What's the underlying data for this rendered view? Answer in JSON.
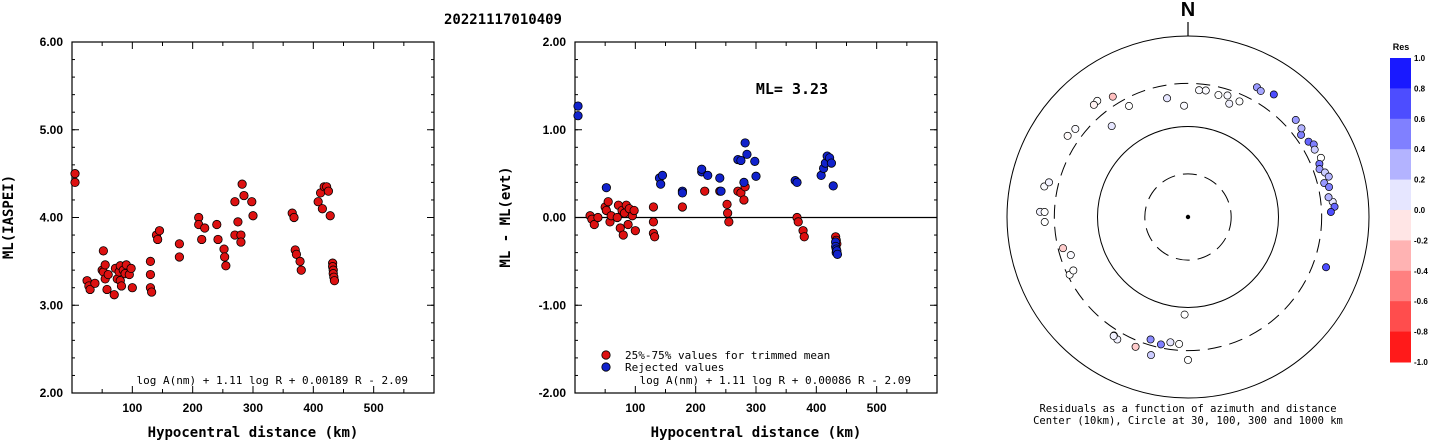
{
  "title": "20221117010409",
  "chart_data": [
    {
      "type": "scatter",
      "panel": "left",
      "xlabel": "Hypocentral distance (km)",
      "ylabel": "ML(IASPEI)",
      "xlim": [
        0,
        600
      ],
      "ylim": [
        2.0,
        6.0
      ],
      "xticks": [
        "100",
        "200",
        "300",
        "400",
        "500"
      ],
      "yticks": [
        "2.00",
        "3.00",
        "4.00",
        "5.00",
        "6.00"
      ],
      "formula": "log A(nm) + 1.11 log R + 0.00189 R - 2.09",
      "series": [
        {
          "color": "#dd1111",
          "points": [
            [
              5,
              4.5
            ],
            [
              5,
              4.4
            ],
            [
              25,
              3.28
            ],
            [
              28,
              3.22
            ],
            [
              30,
              3.18
            ],
            [
              38,
              3.25
            ],
            [
              50,
              3.4
            ],
            [
              52,
              3.62
            ],
            [
              52,
              3.38
            ],
            [
              55,
              3.46
            ],
            [
              55,
              3.3
            ],
            [
              58,
              3.18
            ],
            [
              60,
              3.35
            ],
            [
              70,
              3.12
            ],
            [
              72,
              3.42
            ],
            [
              75,
              3.3
            ],
            [
              78,
              3.38
            ],
            [
              80,
              3.28
            ],
            [
              80,
              3.45
            ],
            [
              82,
              3.22
            ],
            [
              85,
              3.4
            ],
            [
              88,
              3.36
            ],
            [
              90,
              3.46
            ],
            [
              95,
              3.35
            ],
            [
              98,
              3.42
            ],
            [
              100,
              3.2
            ],
            [
              130,
              3.5
            ],
            [
              130,
              3.35
            ],
            [
              130,
              3.2
            ],
            [
              132,
              3.15
            ],
            [
              140,
              3.8
            ],
            [
              142,
              3.75
            ],
            [
              145,
              3.85
            ],
            [
              178,
              3.7
            ],
            [
              178,
              3.55
            ],
            [
              210,
              4.0
            ],
            [
              210,
              3.92
            ],
            [
              215,
              3.75
            ],
            [
              220,
              3.88
            ],
            [
              240,
              3.92
            ],
            [
              242,
              3.75
            ],
            [
              252,
              3.64
            ],
            [
              253,
              3.55
            ],
            [
              255,
              3.45
            ],
            [
              270,
              3.8
            ],
            [
              270,
              4.18
            ],
            [
              275,
              3.95
            ],
            [
              280,
              3.8
            ],
            [
              280,
              3.72
            ],
            [
              282,
              4.38
            ],
            [
              285,
              4.25
            ],
            [
              298,
              4.18
            ],
            [
              300,
              4.02
            ],
            [
              365,
              4.05
            ],
            [
              368,
              4.0
            ],
            [
              370,
              3.63
            ],
            [
              372,
              3.58
            ],
            [
              378,
              3.5
            ],
            [
              380,
              3.4
            ],
            [
              408,
              4.18
            ],
            [
              412,
              4.28
            ],
            [
              415,
              4.1
            ],
            [
              418,
              4.35
            ],
            [
              422,
              4.35
            ],
            [
              425,
              4.3
            ],
            [
              428,
              4.02
            ],
            [
              432,
              3.48
            ],
            [
              432,
              3.44
            ],
            [
              433,
              3.4
            ],
            [
              433,
              3.36
            ],
            [
              434,
              3.32
            ],
            [
              435,
              3.28
            ]
          ]
        }
      ]
    },
    {
      "type": "scatter",
      "panel": "middle",
      "xlabel": "Hypocentral distance (km)",
      "ylabel": "ML - ML(evt)",
      "xlim": [
        0,
        600
      ],
      "ylim": [
        -2.0,
        2.0
      ],
      "xticks": [
        "100",
        "200",
        "300",
        "400",
        "500"
      ],
      "yticks": [
        "-2.00",
        "-1.00",
        "0.00",
        "1.00",
        "2.00"
      ],
      "annotation": "ML= 3.23",
      "formula": "log A(nm) + 1.11 log R + 0.00086 R - 2.09",
      "legend": [
        "25%-75% values for trimmed mean",
        "Rejected values"
      ],
      "series": [
        {
          "name": "25%-75% values for trimmed mean",
          "color": "#dd1111",
          "points": [
            [
              25,
              0.02
            ],
            [
              28,
              -0.02
            ],
            [
              32,
              -0.08
            ],
            [
              38,
              0.0
            ],
            [
              50,
              0.12
            ],
            [
              52,
              0.08
            ],
            [
              55,
              0.18
            ],
            [
              58,
              -0.05
            ],
            [
              60,
              0.02
            ],
            [
              70,
              0.0
            ],
            [
              72,
              0.14
            ],
            [
              75,
              -0.12
            ],
            [
              78,
              0.08
            ],
            [
              80,
              -0.2
            ],
            [
              82,
              0.05
            ],
            [
              85,
              0.14
            ],
            [
              88,
              -0.08
            ],
            [
              90,
              0.1
            ],
            [
              95,
              0.02
            ],
            [
              98,
              0.08
            ],
            [
              100,
              -0.15
            ],
            [
              130,
              0.12
            ],
            [
              130,
              -0.05
            ],
            [
              130,
              -0.18
            ],
            [
              132,
              -0.22
            ],
            [
              178,
              0.12
            ],
            [
              215,
              0.3
            ],
            [
              240,
              0.3
            ],
            [
              252,
              0.15
            ],
            [
              253,
              0.05
            ],
            [
              255,
              -0.05
            ],
            [
              270,
              0.3
            ],
            [
              275,
              0.28
            ],
            [
              280,
              0.2
            ],
            [
              282,
              0.35
            ],
            [
              368,
              0.0
            ],
            [
              370,
              -0.05
            ],
            [
              378,
              -0.15
            ],
            [
              380,
              -0.22
            ],
            [
              432,
              -0.22
            ],
            [
              433,
              -0.26
            ],
            [
              434,
              -0.3
            ]
          ]
        },
        {
          "name": "Rejected values",
          "color": "#1122cc",
          "points": [
            [
              5,
              1.27
            ],
            [
              5,
              1.16
            ],
            [
              52,
              0.34
            ],
            [
              140,
              0.45
            ],
            [
              142,
              0.38
            ],
            [
              145,
              0.48
            ],
            [
              178,
              0.3
            ],
            [
              178,
              0.28
            ],
            [
              210,
              0.52
            ],
            [
              210,
              0.55
            ],
            [
              220,
              0.48
            ],
            [
              240,
              0.45
            ],
            [
              242,
              0.3
            ],
            [
              270,
              0.66
            ],
            [
              275,
              0.65
            ],
            [
              280,
              0.4
            ],
            [
              282,
              0.85
            ],
            [
              285,
              0.72
            ],
            [
              298,
              0.64
            ],
            [
              300,
              0.47
            ],
            [
              365,
              0.42
            ],
            [
              368,
              0.4
            ],
            [
              408,
              0.48
            ],
            [
              412,
              0.56
            ],
            [
              415,
              0.62
            ],
            [
              418,
              0.7
            ],
            [
              422,
              0.68
            ],
            [
              425,
              0.62
            ],
            [
              428,
              0.36
            ],
            [
              432,
              -0.28
            ],
            [
              432,
              -0.33
            ],
            [
              433,
              -0.36
            ],
            [
              433,
              -0.4
            ],
            [
              434,
              -0.38
            ],
            [
              435,
              -0.42
            ]
          ]
        }
      ]
    },
    {
      "type": "scatter",
      "panel": "polar",
      "north_label": "N",
      "caption_lines": [
        "Residuals as a function of azimuth and distance",
        "Center (10km), Circle at 30, 100, 300 and 1000 km"
      ],
      "ring_radii_km": [
        30,
        100,
        300,
        1000
      ],
      "ring_styles": [
        "dashed",
        "solid",
        "dashed",
        "solid"
      ],
      "colorbar": {
        "title": "Res",
        "ticks": [
          "1.0",
          "0.8",
          "0.6",
          "0.4",
          "0.2",
          "0.0",
          "-0.2",
          "-0.4",
          "-0.6",
          "-0.8",
          "-1.0"
        ],
        "range": [
          -1.0,
          1.0
        ]
      },
      "points_azimuth_deg_distance_km_residual": [
        [
          -38,
          425,
          0.0
        ],
        [
          -40,
          415,
          -0.05
        ],
        [
          -32,
          370,
          -0.25
        ],
        [
          -52,
          380,
          0.02
        ],
        [
          -56,
          402,
          -0.02
        ],
        [
          -40,
          205,
          0.1
        ],
        [
          -28,
          245,
          0.0
        ],
        [
          -78,
          420,
          0.02
        ],
        [
          -76,
          383,
          0.05
        ],
        [
          -88,
          432,
          0.05
        ],
        [
          -88,
          385,
          0.0
        ],
        [
          -92,
          384,
          0.0
        ],
        [
          -116,
          285,
          0.0
        ],
        [
          -148,
          350,
          0.0
        ],
        [
          -180,
          380,
          0.0
        ],
        [
          -176,
          255,
          0.0
        ],
        [
          -172,
          250,
          0.1
        ],
        [
          -168,
          275,
          0.5
        ],
        [
          -163,
          260,
          0.45
        ],
        [
          -165,
          380,
          0.2
        ],
        [
          -158,
          352,
          -0.2
        ],
        [
          -150,
          365,
          0.05
        ],
        [
          -148,
          355,
          0.05
        ],
        [
          -115,
          250,
          0.0
        ],
        [
          -108,
          230,
          0.02
        ],
        [
          -104,
          265,
          -0.2
        ],
        [
          -178,
          120,
          0.0
        ],
        [
          -2,
          170,
          0.02
        ],
        [
          -10,
          215,
          0.1
        ],
        [
          5,
          255,
          0.02
        ],
        [
          8,
          258,
          0.02
        ],
        [
          14,
          245,
          0.0
        ],
        [
          20,
          215,
          0.05
        ],
        [
          18,
          258,
          0.02
        ],
        [
          24,
          250,
          0.0
        ],
        [
          28,
          420,
          0.4
        ],
        [
          30,
          405,
          0.35
        ],
        [
          35,
          450,
          0.7
        ],
        [
          54,
          350,
          0.5
        ],
        [
          48,
          400,
          0.4
        ],
        [
          52,
          390,
          0.3
        ],
        [
          58,
          372,
          0.6
        ],
        [
          60,
          402,
          0.5
        ],
        [
          62,
          385,
          0.2
        ],
        [
          66,
          405,
          0.0
        ],
        [
          68,
          368,
          0.55
        ],
        [
          70,
          352,
          0.4
        ],
        [
          72,
          390,
          0.2
        ],
        [
          74,
          415,
          0.3
        ],
        [
          76,
          356,
          0.4
        ],
        [
          78,
          392,
          0.5
        ],
        [
          84,
          405,
          0.1
        ],
        [
          86,
          420,
          0.6
        ],
        [
          88,
          380,
          0.7
        ],
        [
          110,
          420,
          0.7
        ],
        [
          82,
          370,
          0.3
        ]
      ]
    }
  ]
}
